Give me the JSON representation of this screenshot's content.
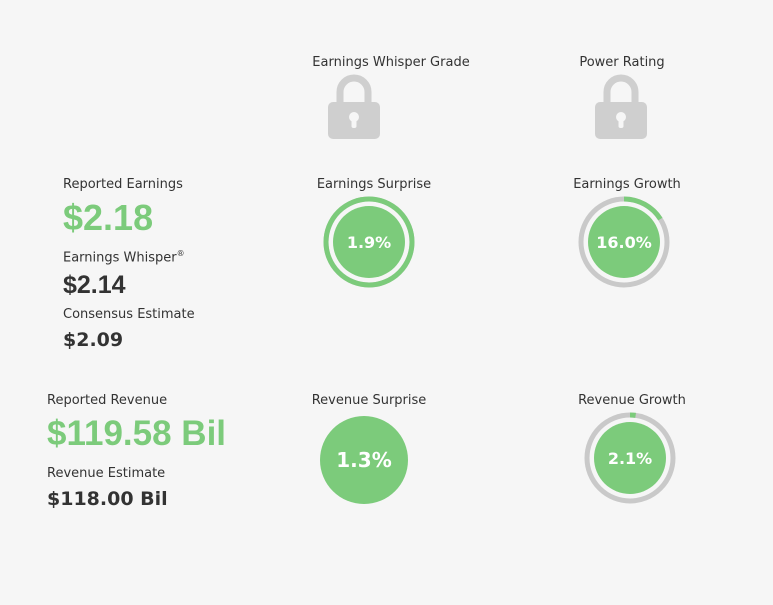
{
  "header": {
    "whisper_grade_label": "Earnings Whisper Grade",
    "power_rating_label": "Power Rating"
  },
  "icons": {
    "whisper_grade": "lock-icon",
    "power_rating": "lock-icon"
  },
  "earnings": {
    "reported_label": "Reported Earnings",
    "reported_value": "$2.18",
    "whisper_label": "Earnings Whisper",
    "whisper_mark": "®",
    "whisper_value": "$2.14",
    "consensus_label": "Consensus Estimate",
    "consensus_value": "$2.09",
    "surprise_label": "Earnings Surprise",
    "surprise_value": "1.9%",
    "surprise_fraction": 1.0,
    "growth_label": "Earnings Growth",
    "growth_value": "16.0%",
    "growth_fraction": 0.16
  },
  "revenue": {
    "reported_label": "Reported Revenue",
    "reported_value": "$119.58 Bil",
    "estimate_label": "Revenue Estimate",
    "estimate_value": "$118.00 Bil",
    "surprise_label": "Revenue Surprise",
    "surprise_value": "1.3%",
    "growth_label": "Revenue Growth",
    "growth_value": "2.1%",
    "growth_fraction": 0.021
  },
  "colors": {
    "green": "#7ccb7b",
    "ring_track": "#c9c9c9",
    "lock": "#cfcfcf",
    "text": "#333333"
  }
}
